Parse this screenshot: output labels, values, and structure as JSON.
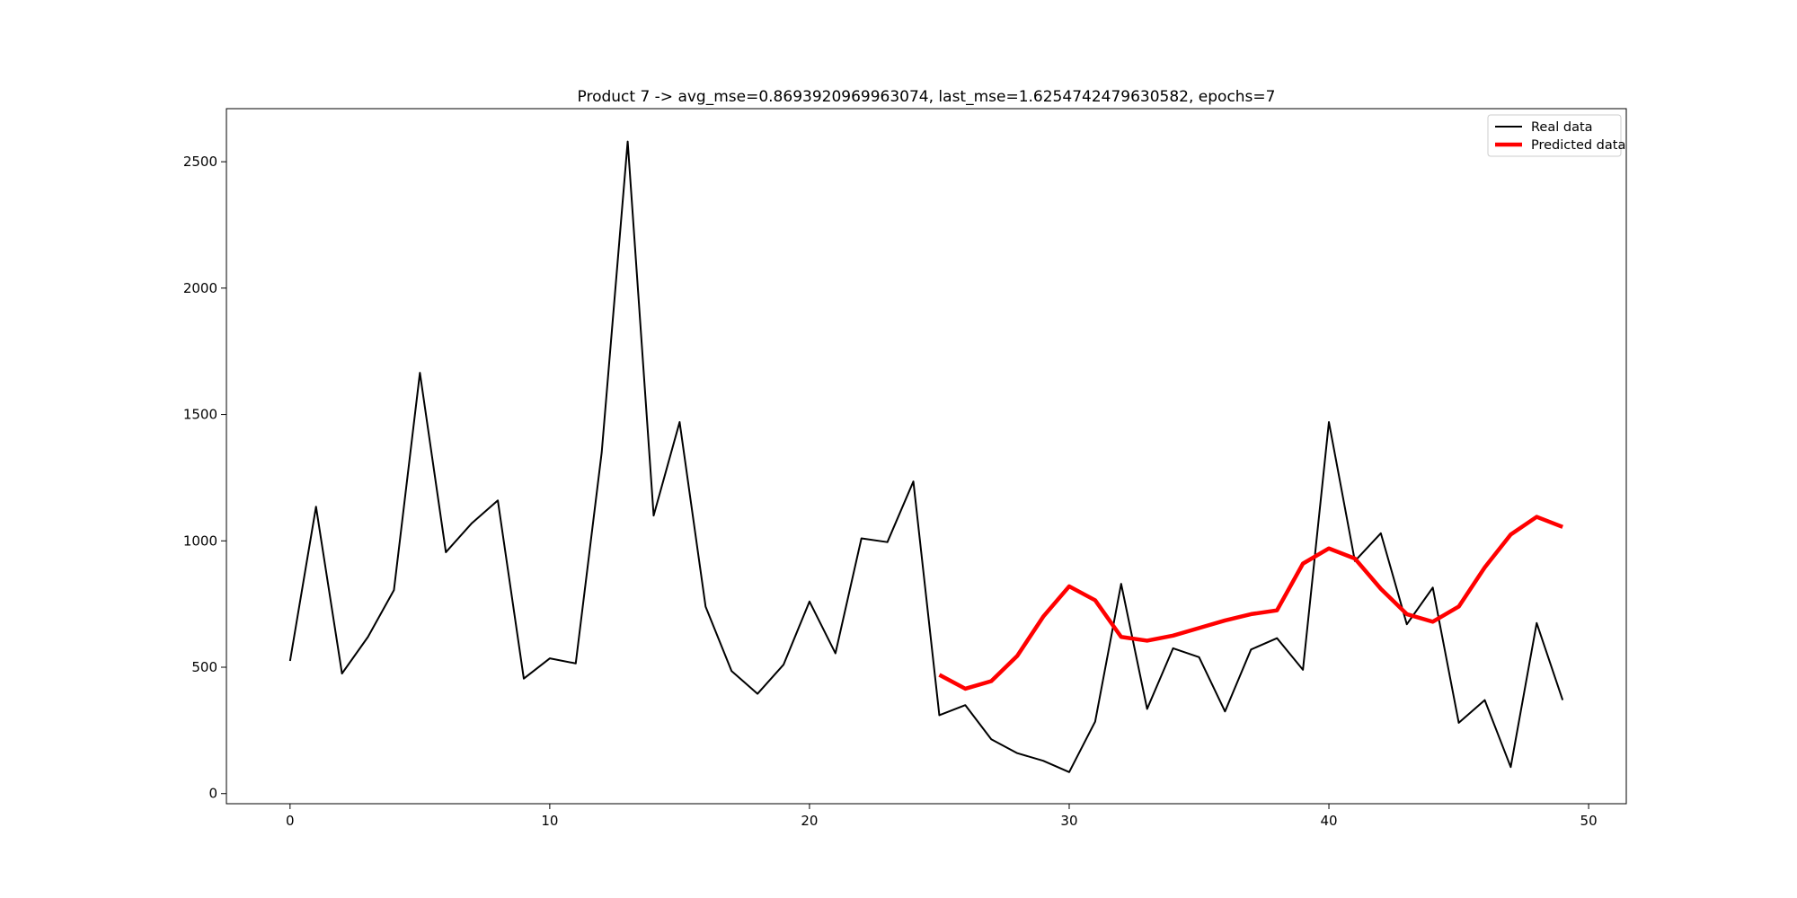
{
  "chart_data": {
    "type": "line",
    "title": "Product 7 -> avg_mse=0.8693920969963074, last_mse=1.6254742479630582, epochs=7",
    "xlabel": "",
    "ylabel": "",
    "xlim": [
      -2.45,
      51.45
    ],
    "ylim": [
      -40,
      2710
    ],
    "xticks": [
      0,
      10,
      20,
      30,
      40,
      50
    ],
    "yticks": [
      0,
      500,
      1000,
      1500,
      2000,
      2500
    ],
    "grid": false,
    "legend_position": "top-right",
    "series": [
      {
        "name": "Real data",
        "color": "#000000",
        "x": [
          0,
          1,
          2,
          3,
          4,
          5,
          6,
          7,
          8,
          9,
          10,
          11,
          12,
          13,
          14,
          15,
          16,
          17,
          18,
          19,
          20,
          21,
          22,
          23,
          24,
          25,
          26,
          27,
          28,
          29,
          30,
          31,
          32,
          33,
          34,
          35,
          36,
          37,
          38,
          39,
          40,
          41,
          42,
          43,
          44,
          45,
          46,
          47,
          48,
          49
        ],
        "values": [
          525,
          1135,
          475,
          620,
          805,
          1665,
          955,
          1070,
          1160,
          455,
          535,
          515,
          1350,
          2580,
          1100,
          1470,
          740,
          485,
          395,
          510,
          760,
          555,
          1010,
          995,
          1235,
          310,
          350,
          215,
          160,
          130,
          85,
          285,
          830,
          335,
          575,
          540,
          325,
          570,
          615,
          490,
          1470,
          920,
          1030,
          670,
          815,
          280,
          370,
          105,
          675,
          370
        ]
      },
      {
        "name": "Predicted data",
        "color": "#ff0000",
        "x": [
          25,
          26,
          27,
          28,
          29,
          30,
          31,
          32,
          33,
          34,
          35,
          36,
          37,
          38,
          39,
          40,
          41,
          42,
          43,
          44,
          45,
          46,
          47,
          48,
          49
        ],
        "values": [
          470,
          415,
          445,
          545,
          700,
          820,
          765,
          620,
          605,
          625,
          655,
          685,
          710,
          725,
          910,
          970,
          930,
          810,
          710,
          680,
          740,
          895,
          1025,
          1095,
          1055
        ]
      }
    ]
  }
}
